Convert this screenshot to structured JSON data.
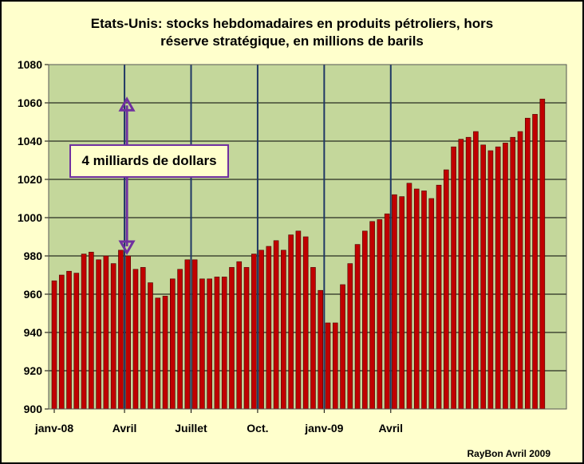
{
  "colors": {
    "background": "#ffffcc",
    "plot_background": "#c4d79b",
    "bar": "#c00000",
    "bar_outline": "#4a0000",
    "month_line": "#1f3864",
    "arrow": "#7030a0"
  },
  "title_lines": [
    "Etats-Unis: stocks hebdomadaires en produits pétroliers, hors",
    "réserve stratégique,  en millions de barils"
  ],
  "annotation": "4 milliards de dollars",
  "credit": "RayBon Avril 2009",
  "chart_data": {
    "type": "bar",
    "title": "Etats-Unis: stocks hebdomadaires en produits pétroliers, hors réserve stratégique,  en millions de barils",
    "xlabel": "",
    "ylabel": "",
    "ylim": [
      900,
      1080
    ],
    "yticks": [
      900,
      920,
      940,
      960,
      980,
      1000,
      1020,
      1040,
      1060,
      1080
    ],
    "grid": true,
    "legend": "none",
    "x_tick_labels": [
      {
        "label": "janv-08",
        "at_bar": 0
      },
      {
        "label": "Avril",
        "at_bar": 9.5
      },
      {
        "label": "Juillet",
        "at_bar": 18.5
      },
      {
        "label": "Oct.",
        "at_bar": 27.5
      },
      {
        "label": "janv-09",
        "at_bar": 36.5
      },
      {
        "label": "Avril",
        "at_bar": 45.5
      }
    ],
    "month_divider_after_bar": [
      9.5,
      18.5,
      27.5,
      36.5,
      45.5
    ],
    "annotation_arrow": {
      "from": 1062,
      "to": 980,
      "label": "4 milliards de dollars"
    },
    "values": [
      967,
      970,
      972,
      971,
      981,
      982,
      978,
      980,
      976,
      983,
      980,
      973,
      974,
      966,
      958,
      959,
      968,
      973,
      978,
      978,
      968,
      968,
      969,
      969,
      974,
      977,
      974,
      981,
      983,
      985,
      988,
      983,
      991,
      993,
      990,
      974,
      962,
      945,
      945,
      965,
      976,
      986,
      993,
      998,
      999,
      1002,
      1012,
      1011,
      1018,
      1015,
      1014,
      1010,
      1017,
      1025,
      1037,
      1041,
      1042,
      1045,
      1038,
      1035,
      1037,
      1039,
      1042,
      1045,
      1052,
      1054,
      1062
    ]
  }
}
